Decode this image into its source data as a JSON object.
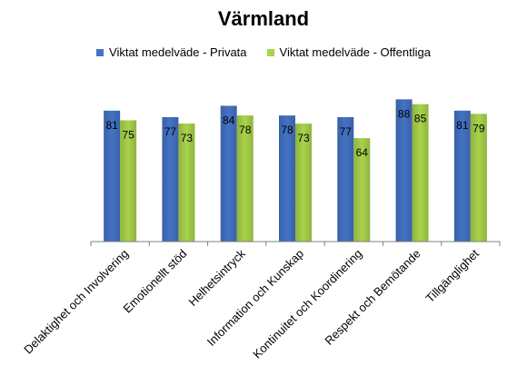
{
  "chart_data": {
    "type": "bar",
    "title": "Värmland",
    "categories": [
      "Delaktighet och Involvering",
      "Emotionellt stöd",
      "Helhetsintryck",
      "Information och Kunskap",
      "Kontinuitet och Koordinering",
      "Respekt och Bemötande",
      "Tillgänglighet"
    ],
    "series": [
      {
        "name": "Viktat medelväde - Privata",
        "values": [
          81,
          77,
          84,
          78,
          77,
          88,
          81
        ],
        "color": "#4472C4"
      },
      {
        "name": "Viktat medelväde - Offentliga",
        "values": [
          75,
          73,
          78,
          73,
          64,
          85,
          79
        ],
        "color": "#A9D34A"
      }
    ],
    "ylim": [
      0,
      100
    ],
    "grid": false,
    "legend_position": "top",
    "data_labels": true
  }
}
